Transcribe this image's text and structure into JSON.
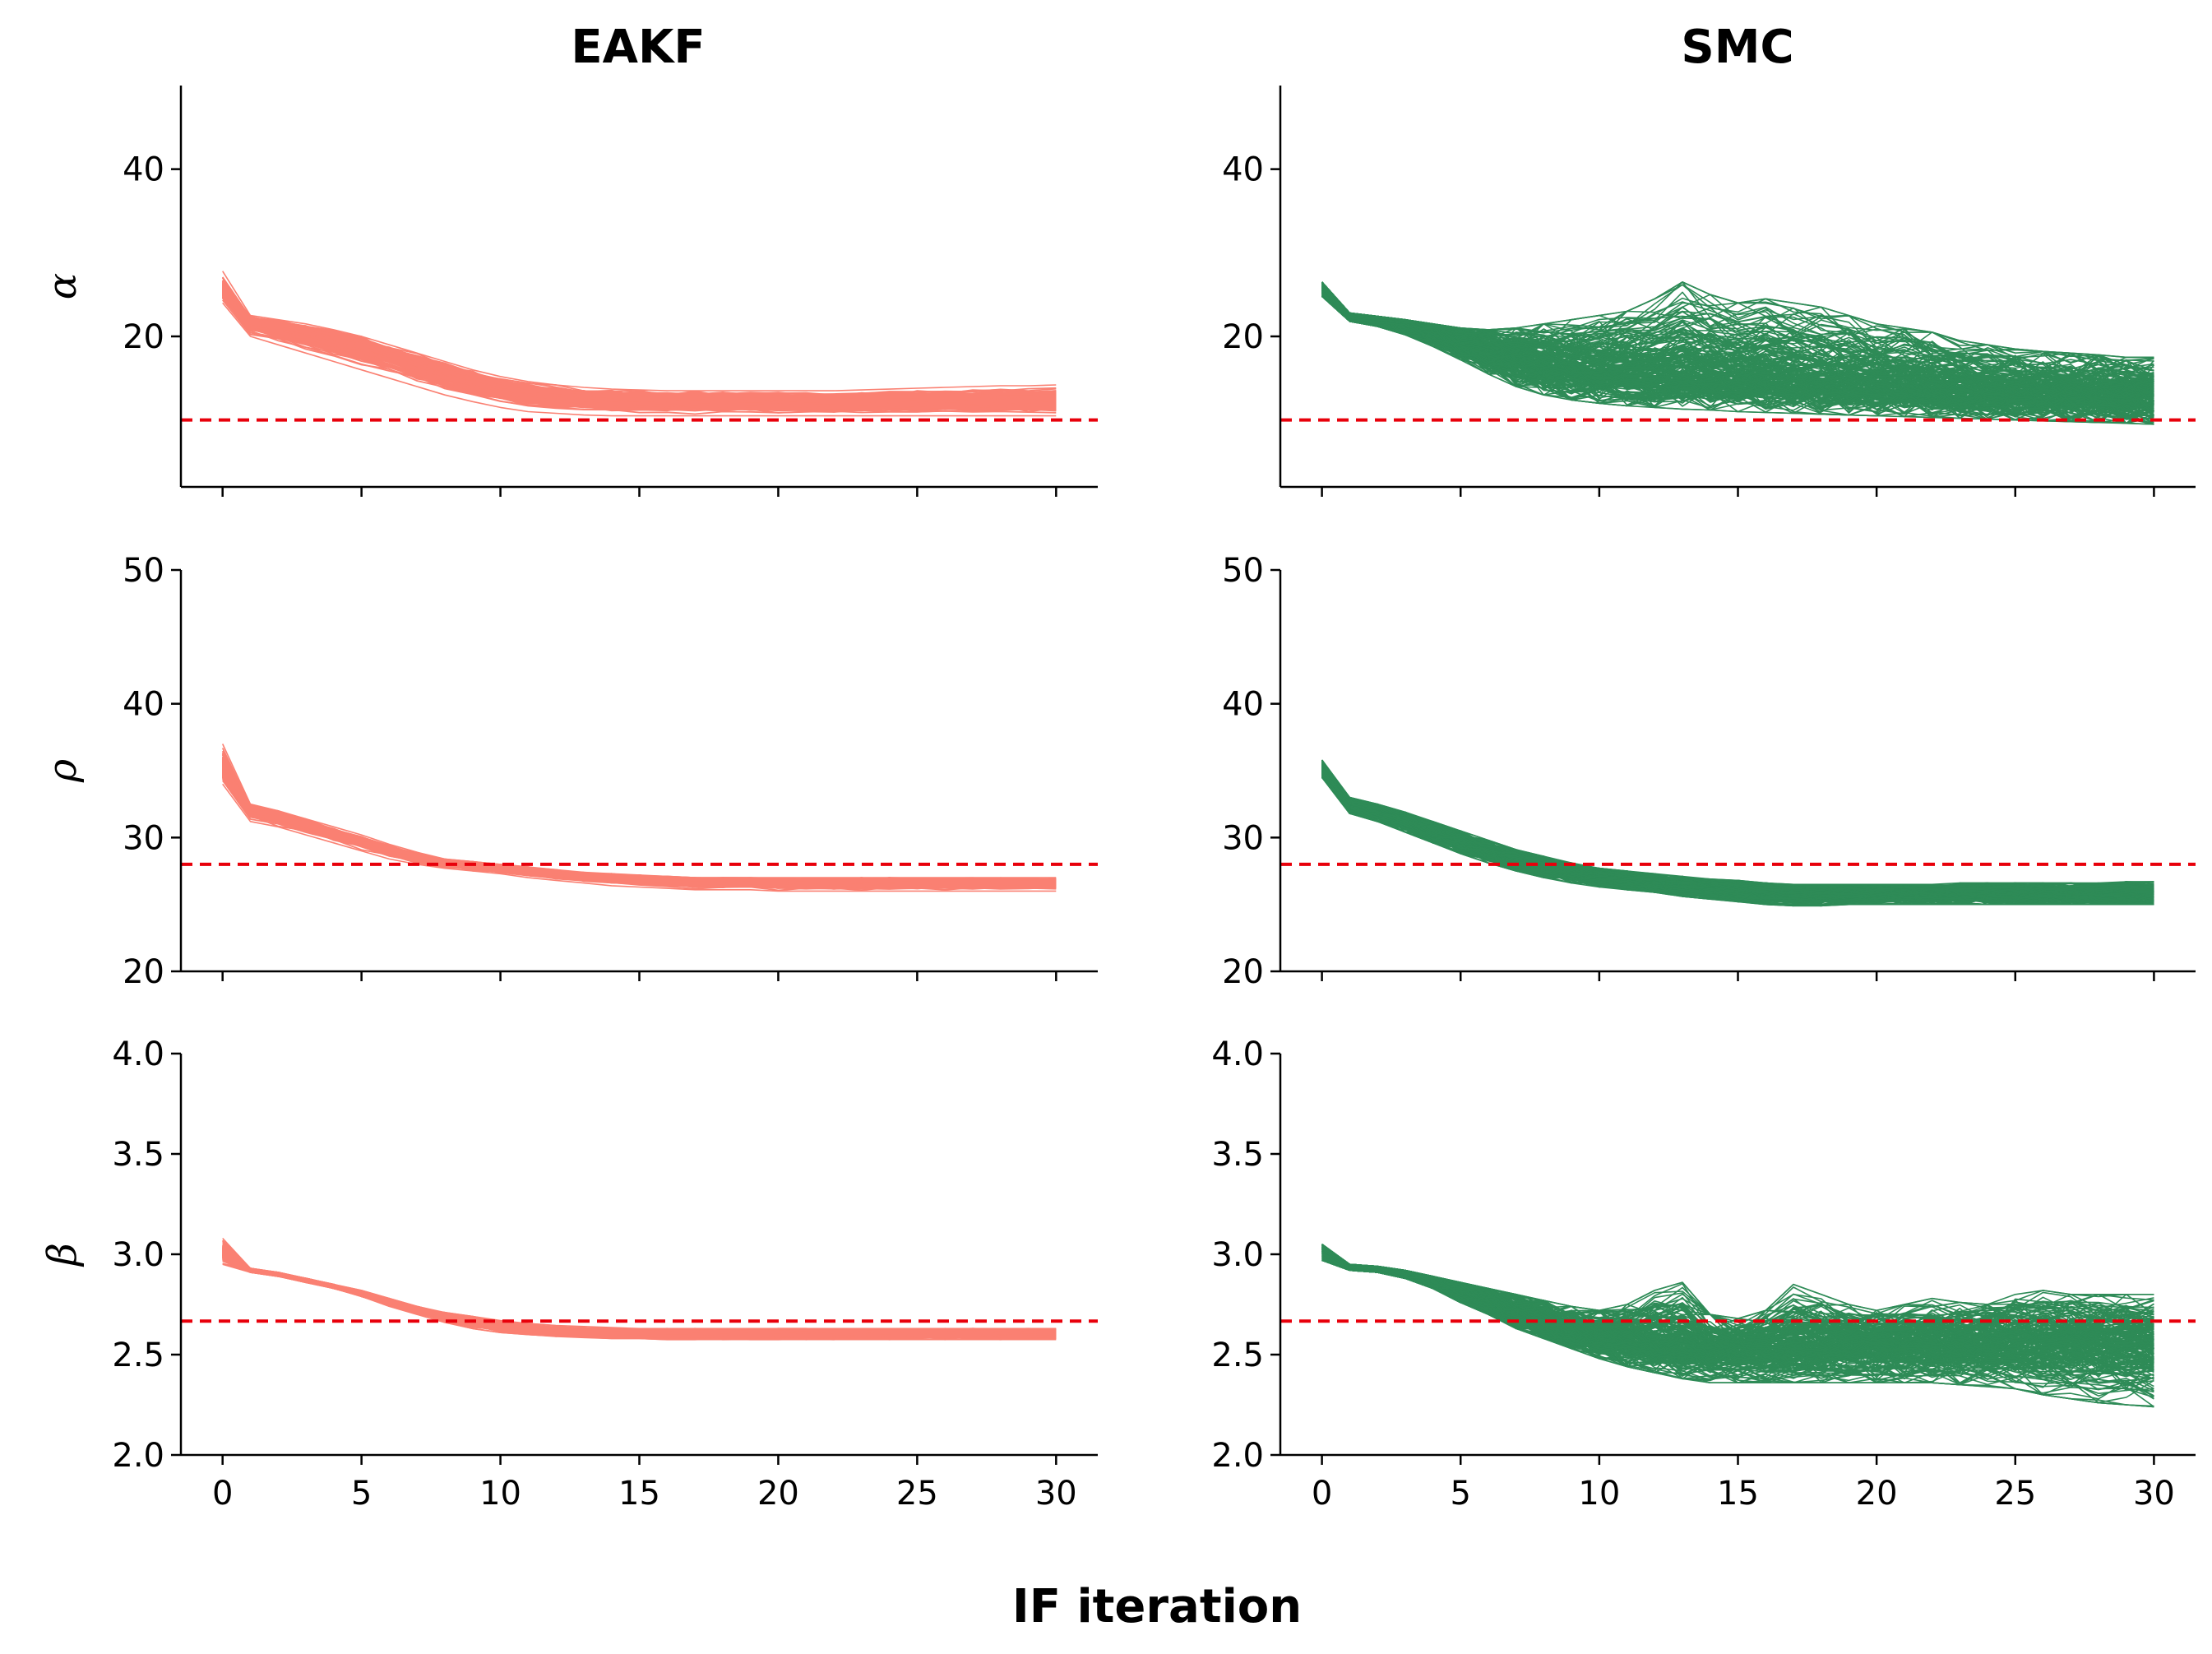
{
  "figure": {
    "xlabel": "IF iteration",
    "columns": [
      "EAKF",
      "SMC"
    ],
    "colors": {
      "EAKF": "#fa8072",
      "SMC": "#2e8b57",
      "truth": "#e8000b"
    }
  },
  "chart_data": [
    {
      "type": "line",
      "method": "EAKF",
      "parameter": "alpha",
      "ylabel": "α",
      "ylim": [
        2,
        50
      ],
      "yticks": [
        20,
        40
      ],
      "xlim": [
        -1.5,
        31.5
      ],
      "xticks": [
        0,
        5,
        10,
        15,
        20,
        25,
        30
      ],
      "show_xticklabels": false,
      "truth": 10,
      "color": "#fa8072",
      "n_members": 300,
      "spread": 0.6,
      "jitter": 0.15,
      "x": [
        0,
        1,
        2,
        3,
        4,
        5,
        6,
        7,
        8,
        9,
        10,
        11,
        12,
        13,
        14,
        15,
        16,
        17,
        18,
        19,
        20,
        21,
        22,
        23,
        24,
        25,
        26,
        27,
        28,
        29,
        30
      ],
      "mean": [
        25.5,
        21.8,
        21.2,
        20.6,
        19.8,
        19.0,
        18.0,
        16.9,
        15.8,
        14.9,
        14.1,
        13.5,
        13.0,
        12.7,
        12.5,
        12.4,
        12.3,
        12.3,
        12.3,
        12.3,
        12.3,
        12.3,
        12.3,
        12.3,
        12.3,
        12.3,
        12.3,
        12.3,
        12.3,
        12.3,
        12.3
      ],
      "min": [
        24.0,
        20.0,
        19.0,
        18.0,
        17.0,
        16.0,
        15.0,
        14.0,
        13.0,
        12.2,
        11.5,
        11.0,
        10.8,
        10.6,
        10.5,
        10.5,
        10.5,
        10.5,
        10.5,
        10.5,
        10.5,
        10.5,
        10.5,
        10.5,
        10.5,
        10.5,
        10.5,
        10.5,
        10.5,
        10.5,
        10.5
      ],
      "max": [
        27.8,
        22.5,
        22.0,
        21.5,
        20.8,
        20.0,
        19.0,
        18.0,
        17.0,
        16.0,
        15.2,
        14.6,
        14.2,
        13.9,
        13.7,
        13.6,
        13.5,
        13.5,
        13.5,
        13.5,
        13.5,
        13.5,
        13.5,
        13.6,
        13.7,
        13.8,
        13.9,
        14.0,
        14.1,
        14.1,
        14.2
      ]
    },
    {
      "type": "line",
      "method": "SMC",
      "parameter": "alpha",
      "ylabel": "",
      "ylim": [
        2,
        50
      ],
      "yticks": [
        20,
        40
      ],
      "xlim": [
        -1.5,
        31.5
      ],
      "xticks": [
        0,
        5,
        10,
        15,
        20,
        25,
        30
      ],
      "show_xticklabels": false,
      "truth": 10,
      "color": "#2e8b57",
      "n_members": 200,
      "spread": 0.9,
      "jitter": 1.0,
      "x": [
        0,
        1,
        2,
        3,
        4,
        5,
        6,
        7,
        8,
        9,
        10,
        11,
        12,
        13,
        14,
        15,
        16,
        17,
        18,
        19,
        20,
        21,
        22,
        23,
        24,
        25,
        26,
        27,
        28,
        29,
        30
      ],
      "mean": [
        25.5,
        22.2,
        21.8,
        21.3,
        20.3,
        19.2,
        18.0,
        17.0,
        16.3,
        15.8,
        15.5,
        15.3,
        15.2,
        15.1,
        15.0,
        14.9,
        14.7,
        14.5,
        14.3,
        14.1,
        13.9,
        13.7,
        13.5,
        13.3,
        13.1,
        13.0,
        12.9,
        12.8,
        12.8,
        12.7,
        12.7
      ],
      "min": [
        24.8,
        21.8,
        21.2,
        20.2,
        18.8,
        17.2,
        15.5,
        14.0,
        13.0,
        12.4,
        12.0,
        11.7,
        11.5,
        11.3,
        11.2,
        11.0,
        10.9,
        10.8,
        10.7,
        10.6,
        10.5,
        10.4,
        10.3,
        10.2,
        10.1,
        10.0,
        9.9,
        9.8,
        9.7,
        9.6,
        9.5
      ],
      "max": [
        26.5,
        22.8,
        22.4,
        22.0,
        21.5,
        21.0,
        20.8,
        21.0,
        21.5,
        22.0,
        22.5,
        23.0,
        24.5,
        26.5,
        25.0,
        24.0,
        24.5,
        24.0,
        23.5,
        22.5,
        21.5,
        21.0,
        20.5,
        19.5,
        19.0,
        18.5,
        18.2,
        18.0,
        17.8,
        17.5,
        17.5
      ]
    },
    {
      "type": "line",
      "method": "EAKF",
      "parameter": "rho",
      "ylabel": "ρ",
      "ylim": [
        20,
        50
      ],
      "yticks": [
        20,
        30,
        40,
        50
      ],
      "xlim": [
        -1.5,
        31.5
      ],
      "xticks": [
        0,
        5,
        10,
        15,
        20,
        25,
        30
      ],
      "show_xticklabels": false,
      "truth": 28,
      "color": "#fa8072",
      "n_members": 300,
      "spread": 0.6,
      "jitter": 0.08,
      "x": [
        0,
        1,
        2,
        3,
        4,
        5,
        6,
        7,
        8,
        9,
        10,
        11,
        12,
        13,
        14,
        15,
        16,
        17,
        18,
        19,
        20,
        21,
        22,
        23,
        24,
        25,
        26,
        27,
        28,
        29,
        30
      ],
      "mean": [
        35.0,
        32.0,
        31.5,
        30.9,
        30.3,
        29.7,
        29.1,
        28.5,
        28.1,
        27.9,
        27.7,
        27.5,
        27.3,
        27.1,
        27.0,
        26.9,
        26.8,
        26.7,
        26.7,
        26.7,
        26.6,
        26.6,
        26.6,
        26.6,
        26.6,
        26.6,
        26.6,
        26.6,
        26.6,
        26.6,
        26.6
      ],
      "min": [
        34.0,
        31.2,
        30.8,
        30.2,
        29.6,
        29.0,
        28.4,
        28.0,
        27.7,
        27.5,
        27.3,
        27.0,
        26.8,
        26.6,
        26.4,
        26.3,
        26.2,
        26.1,
        26.1,
        26.1,
        26.0,
        26.0,
        26.0,
        26.0,
        26.0,
        26.0,
        26.0,
        26.0,
        26.0,
        26.0,
        26.0
      ],
      "max": [
        37.0,
        32.5,
        32.0,
        31.4,
        30.8,
        30.2,
        29.5,
        28.9,
        28.4,
        28.2,
        28.0,
        27.8,
        27.6,
        27.4,
        27.3,
        27.2,
        27.1,
        27.0,
        27.0,
        27.0,
        27.0,
        27.0,
        27.0,
        27.0,
        27.0,
        27.0,
        27.0,
        27.0,
        27.0,
        27.0,
        27.0
      ]
    },
    {
      "type": "line",
      "method": "SMC",
      "parameter": "rho",
      "ylabel": "",
      "ylim": [
        20,
        50
      ],
      "yticks": [
        20,
        30,
        40,
        50
      ],
      "xlim": [
        -1.5,
        31.5
      ],
      "xticks": [
        0,
        5,
        10,
        15,
        20,
        25,
        30
      ],
      "show_xticklabels": false,
      "truth": 28,
      "color": "#2e8b57",
      "n_members": 200,
      "spread": 0.8,
      "jitter": 0.25,
      "x": [
        0,
        1,
        2,
        3,
        4,
        5,
        6,
        7,
        8,
        9,
        10,
        11,
        12,
        13,
        14,
        15,
        16,
        17,
        18,
        19,
        20,
        21,
        22,
        23,
        24,
        25,
        26,
        27,
        28,
        29,
        30
      ],
      "mean": [
        35.0,
        32.4,
        31.9,
        31.2,
        30.4,
        29.6,
        28.9,
        28.3,
        27.8,
        27.4,
        27.0,
        26.8,
        26.6,
        26.4,
        26.2,
        26.0,
        25.9,
        25.8,
        25.8,
        25.8,
        25.8,
        25.8,
        25.8,
        25.8,
        25.8,
        25.8,
        25.8,
        25.8,
        25.8,
        25.8,
        25.8
      ],
      "min": [
        34.5,
        31.8,
        31.2,
        30.4,
        29.6,
        28.8,
        28.1,
        27.5,
        27.0,
        26.6,
        26.3,
        26.1,
        25.9,
        25.6,
        25.4,
        25.2,
        25.0,
        24.9,
        24.9,
        25.0,
        25.0,
        25.0,
        25.0,
        25.0,
        25.0,
        25.0,
        25.0,
        25.0,
        25.0,
        25.0,
        25.0
      ],
      "max": [
        35.8,
        33.0,
        32.5,
        31.9,
        31.2,
        30.5,
        29.8,
        29.1,
        28.6,
        28.1,
        27.7,
        27.5,
        27.3,
        27.1,
        26.9,
        26.8,
        26.6,
        26.5,
        26.5,
        26.5,
        26.5,
        26.5,
        26.5,
        26.6,
        26.6,
        26.6,
        26.6,
        26.6,
        26.6,
        26.7,
        26.7
      ]
    },
    {
      "type": "line",
      "method": "EAKF",
      "parameter": "beta",
      "ylabel": "β",
      "ylim": [
        2.0,
        4.0
      ],
      "yticks": [
        2.0,
        2.5,
        3.0,
        3.5,
        4.0
      ],
      "xlim": [
        -1.5,
        31.5
      ],
      "xticks": [
        0,
        5,
        10,
        15,
        20,
        25,
        30
      ],
      "show_xticklabels": true,
      "truth": 2.667,
      "color": "#fa8072",
      "n_members": 300,
      "spread": 0.6,
      "jitter": 0.005,
      "x": [
        0,
        1,
        2,
        3,
        4,
        5,
        6,
        7,
        8,
        9,
        10,
        11,
        12,
        13,
        14,
        15,
        16,
        17,
        18,
        19,
        20,
        21,
        22,
        23,
        24,
        25,
        26,
        27,
        28,
        29,
        30
      ],
      "mean": [
        3.0,
        2.92,
        2.9,
        2.87,
        2.84,
        2.8,
        2.76,
        2.72,
        2.69,
        2.66,
        2.64,
        2.625,
        2.615,
        2.61,
        2.605,
        2.6,
        2.6,
        2.6,
        2.6,
        2.6,
        2.6,
        2.6,
        2.6,
        2.6,
        2.6,
        2.6,
        2.6,
        2.6,
        2.6,
        2.6,
        2.6
      ],
      "min": [
        2.95,
        2.91,
        2.89,
        2.86,
        2.83,
        2.79,
        2.74,
        2.7,
        2.66,
        2.63,
        2.61,
        2.6,
        2.59,
        2.585,
        2.58,
        2.58,
        2.575,
        2.575,
        2.575,
        2.575,
        2.575,
        2.575,
        2.575,
        2.575,
        2.575,
        2.575,
        2.575,
        2.575,
        2.575,
        2.575,
        2.575
      ],
      "max": [
        3.08,
        2.93,
        2.91,
        2.88,
        2.85,
        2.82,
        2.78,
        2.74,
        2.71,
        2.69,
        2.67,
        2.655,
        2.645,
        2.64,
        2.635,
        2.63,
        2.63,
        2.63,
        2.63,
        2.63,
        2.63,
        2.63,
        2.63,
        2.63,
        2.63,
        2.63,
        2.63,
        2.63,
        2.63,
        2.63,
        2.63
      ]
    },
    {
      "type": "line",
      "method": "SMC",
      "parameter": "beta",
      "ylabel": "",
      "ylim": [
        2.0,
        4.0
      ],
      "yticks": [
        2.0,
        2.5,
        3.0,
        3.5,
        4.0
      ],
      "xlim": [
        -1.5,
        31.5
      ],
      "xticks": [
        0,
        5,
        10,
        15,
        20,
        25,
        30
      ],
      "show_xticklabels": true,
      "truth": 2.667,
      "color": "#2e8b57",
      "n_members": 200,
      "spread": 0.9,
      "jitter": 0.04,
      "x": [
        0,
        1,
        2,
        3,
        4,
        5,
        6,
        7,
        8,
        9,
        10,
        11,
        12,
        13,
        14,
        15,
        16,
        17,
        18,
        19,
        20,
        21,
        22,
        23,
        24,
        25,
        26,
        27,
        28,
        29,
        30
      ],
      "mean": [
        3.0,
        2.93,
        2.92,
        2.9,
        2.86,
        2.8,
        2.75,
        2.7,
        2.66,
        2.62,
        2.59,
        2.57,
        2.55,
        2.54,
        2.53,
        2.53,
        2.53,
        2.54,
        2.54,
        2.55,
        2.55,
        2.55,
        2.55,
        2.56,
        2.56,
        2.56,
        2.56,
        2.56,
        2.56,
        2.56,
        2.56
      ],
      "min": [
        2.97,
        2.92,
        2.91,
        2.88,
        2.83,
        2.76,
        2.7,
        2.63,
        2.58,
        2.53,
        2.48,
        2.44,
        2.41,
        2.38,
        2.36,
        2.36,
        2.36,
        2.36,
        2.36,
        2.36,
        2.36,
        2.36,
        2.36,
        2.35,
        2.34,
        2.33,
        2.3,
        2.28,
        2.26,
        2.25,
        2.24
      ],
      "max": [
        3.05,
        2.95,
        2.94,
        2.92,
        2.89,
        2.86,
        2.83,
        2.8,
        2.77,
        2.74,
        2.72,
        2.75,
        2.82,
        2.86,
        2.7,
        2.68,
        2.72,
        2.85,
        2.8,
        2.75,
        2.72,
        2.75,
        2.78,
        2.76,
        2.75,
        2.8,
        2.82,
        2.8,
        2.8,
        2.8,
        2.8
      ]
    }
  ]
}
